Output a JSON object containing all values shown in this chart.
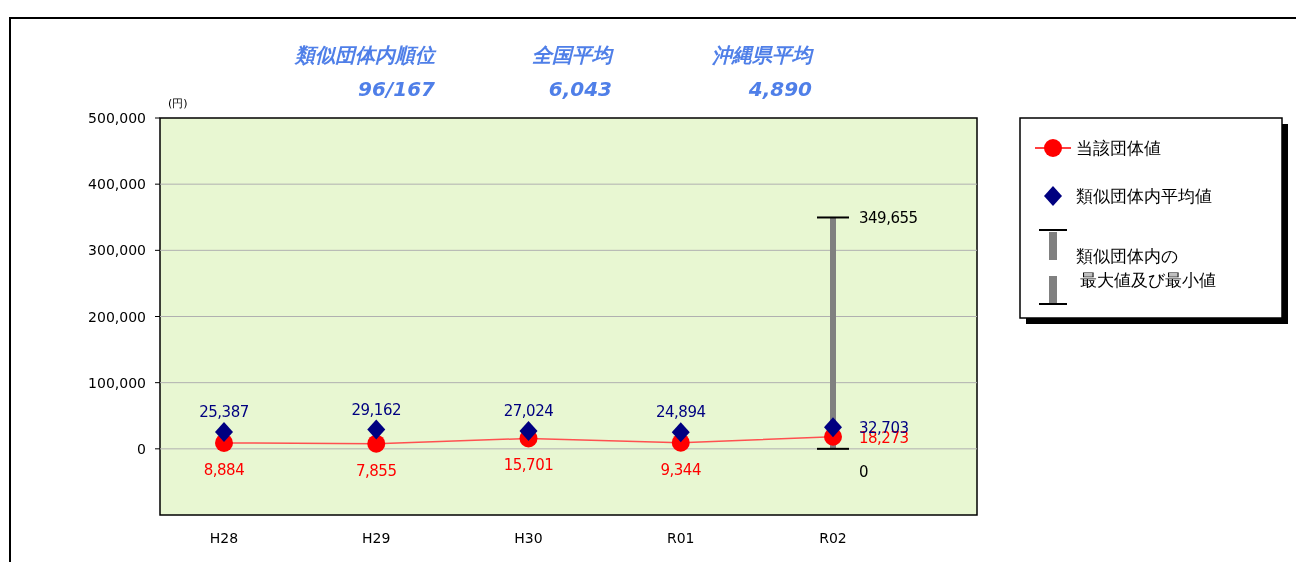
{
  "chart_data": {
    "type": "line",
    "ylabel": "(円)",
    "categories": [
      "H28",
      "H29",
      "H30",
      "R01",
      "R02"
    ],
    "series": [
      {
        "name": "当該団体値",
        "color": "#ff0000",
        "marker": "circle",
        "values": [
          8884,
          7855,
          15701,
          9344,
          18273
        ],
        "value_labels": [
          "8,884",
          "7,855",
          "15,701",
          "9,344",
          "18,273"
        ]
      },
      {
        "name": "類似団体内平均値",
        "type": "scatter",
        "color": "#000080",
        "marker": "diamond",
        "values": [
          25387,
          29162,
          27024,
          24894,
          32703
        ],
        "value_labels": [
          "25,387",
          "29,162",
          "27,024",
          "24,894",
          "32,703"
        ]
      },
      {
        "name": "類似団体内の最大値及び最小値",
        "type": "bar",
        "color": "#808080",
        "values": [
          null,
          null,
          null,
          null,
          349655
        ]
      }
    ],
    "ylim": [
      -100000,
      500000
    ],
    "yticks": [
      {
        "value": 0,
        "label": "0"
      },
      {
        "value": 100000,
        "label": "100,000"
      },
      {
        "value": 200000,
        "label": "200,000"
      },
      {
        "value": 300000,
        "label": "300,000"
      },
      {
        "value": 400000,
        "label": "400,000"
      },
      {
        "value": 500000,
        "label": "500,000"
      }
    ],
    "grid": "y",
    "legend": "right",
    "annotations": [
      "類似団体内順位",
      "96/167",
      "全国平均",
      "6,043",
      "沖縄県平均",
      "4,890",
      {
        "text": "349,655",
        "x": "R02",
        "y": 349655
      },
      {
        "text": "0",
        "x": "R02",
        "y": 0
      }
    ]
  }
}
